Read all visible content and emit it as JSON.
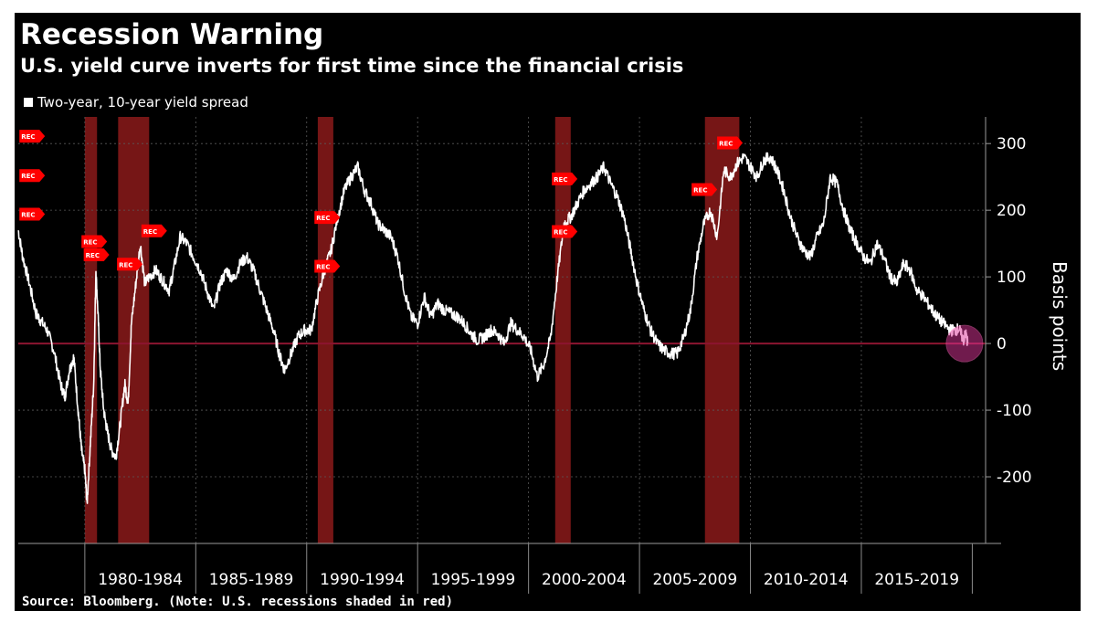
{
  "title": "Recession Warning",
  "subtitle": "U.S. yield curve inverts for first time since the financial crisis",
  "legend_label": "Two-year, 10-year yield spread",
  "source": "Source: Bloomberg. (Note: U.S. recessions shaded in red)",
  "colors": {
    "background": "#000000",
    "line": "#ffffff",
    "recession_shade": "#8b1a1a",
    "zero_line": "#8c1530",
    "highlight": "#e0379a",
    "marker": "#ff0000"
  },
  "chart_data": {
    "type": "line",
    "title": "Recession Warning",
    "subtitle": "U.S. yield curve inverts for first time since the financial crisis",
    "ylabel": "Basis points",
    "xlabel": "",
    "xlim": [
      1977.0,
      2020.6
    ],
    "ylim": [
      -300,
      340
    ],
    "yticks": [
      -200,
      -100,
      0,
      100,
      200,
      300
    ],
    "ytick_labels": [
      "-200",
      "-100",
      "0",
      "100",
      "200",
      "300"
    ],
    "x_period_labels": [
      {
        "label": "1980-1984",
        "start": 1980,
        "end": 1985
      },
      {
        "label": "1985-1989",
        "start": 1985,
        "end": 1990
      },
      {
        "label": "1990-1994",
        "start": 1990,
        "end": 1995
      },
      {
        "label": "1995-1999",
        "start": 1995,
        "end": 2000
      },
      {
        "label": "2000-2004",
        "start": 2000,
        "end": 2005
      },
      {
        "label": "2005-2009",
        "start": 2005,
        "end": 2010
      },
      {
        "label": "2010-2014",
        "start": 2010,
        "end": 2015
      },
      {
        "label": "2015-2019",
        "start": 2015,
        "end": 2020
      }
    ],
    "recessions": [
      {
        "start": 1980.0,
        "end": 1980.55
      },
      {
        "start": 1981.5,
        "end": 1982.9
      },
      {
        "start": 1990.5,
        "end": 1991.2
      },
      {
        "start": 2001.2,
        "end": 2001.9
      },
      {
        "start": 2007.95,
        "end": 2009.5
      }
    ],
    "rec_markers": [
      {
        "label": "REC",
        "x": 1977.05,
        "y": 311
      },
      {
        "label": "REC",
        "x": 1977.05,
        "y": 252
      },
      {
        "label": "REC",
        "x": 1977.05,
        "y": 194
      },
      {
        "label": "REC",
        "x": 1979.85,
        "y": 153
      },
      {
        "label": "REC",
        "x": 1979.95,
        "y": 133
      },
      {
        "label": "REC",
        "x": 1981.45,
        "y": 119
      },
      {
        "label": "REC",
        "x": 1982.55,
        "y": 169
      },
      {
        "label": "REC",
        "x": 1990.35,
        "y": 189
      },
      {
        "label": "REC",
        "x": 1990.35,
        "y": 116
      },
      {
        "label": "REC",
        "x": 2001.05,
        "y": 247
      },
      {
        "label": "REC",
        "x": 2001.05,
        "y": 168
      },
      {
        "label": "REC",
        "x": 2007.35,
        "y": 231
      },
      {
        "label": "REC",
        "x": 2008.5,
        "y": 301
      }
    ],
    "series": [
      {
        "name": "Two-year, 10-year yield spread",
        "x": [
          1977.0,
          1977.2,
          1977.5,
          1977.8,
          1978.0,
          1978.3,
          1978.6,
          1978.9,
          1979.1,
          1979.3,
          1979.5,
          1979.7,
          1979.85,
          1980.0,
          1980.1,
          1980.25,
          1980.4,
          1980.5,
          1980.6,
          1980.7,
          1980.85,
          1981.0,
          1981.2,
          1981.4,
          1981.6,
          1981.8,
          1981.95,
          1982.1,
          1982.3,
          1982.5,
          1982.7,
          1982.9,
          1983.2,
          1983.5,
          1983.8,
          1984.0,
          1984.3,
          1984.6,
          1984.9,
          1985.2,
          1985.5,
          1985.8,
          1986.1,
          1986.4,
          1986.7,
          1987.0,
          1987.3,
          1987.6,
          1987.9,
          1988.2,
          1988.5,
          1988.8,
          1989.0,
          1989.3,
          1989.6,
          1989.9,
          1990.2,
          1990.5,
          1990.8,
          1991.1,
          1991.4,
          1991.7,
          1992.0,
          1992.3,
          1992.6,
          1992.9,
          1993.2,
          1993.5,
          1993.8,
          1994.1,
          1994.4,
          1994.7,
          1995.0,
          1995.3,
          1995.6,
          1995.9,
          1996.2,
          1996.5,
          1996.8,
          1997.1,
          1997.4,
          1997.7,
          1998.0,
          1998.3,
          1998.6,
          1998.9,
          1999.2,
          1999.5,
          1999.8,
          2000.1,
          2000.4,
          2000.7,
          2001.0,
          2001.3,
          2001.6,
          2001.9,
          2002.2,
          2002.5,
          2002.8,
          2003.1,
          2003.4,
          2003.7,
          2004.0,
          2004.3,
          2004.6,
          2004.9,
          2005.2,
          2005.5,
          2005.8,
          2006.1,
          2006.4,
          2006.7,
          2007.0,
          2007.3,
          2007.6,
          2007.9,
          2008.2,
          2008.5,
          2008.8,
          2009.1,
          2009.4,
          2009.7,
          2010.0,
          2010.3,
          2010.6,
          2010.9,
          2011.2,
          2011.5,
          2011.8,
          2012.1,
          2012.4,
          2012.7,
          2013.0,
          2013.3,
          2013.6,
          2013.9,
          2014.2,
          2014.5,
          2014.8,
          2015.1,
          2015.4,
          2015.7,
          2016.0,
          2016.3,
          2016.6,
          2016.9,
          2017.2,
          2017.5,
          2017.8,
          2018.1,
          2018.4,
          2018.7,
          2019.0,
          2019.2,
          2019.4,
          2019.6,
          2019.7,
          2019.8
        ],
        "values": [
          170,
          130,
          90,
          45,
          35,
          20,
          -10,
          -60,
          -80,
          -40,
          -20,
          -100,
          -160,
          -190,
          -240,
          -150,
          -60,
          110,
          40,
          -40,
          -100,
          -130,
          -160,
          -170,
          -120,
          -60,
          -90,
          30,
          90,
          150,
          90,
          100,
          110,
          95,
          80,
          110,
          160,
          150,
          130,
          110,
          80,
          50,
          90,
          110,
          95,
          120,
          130,
          110,
          80,
          50,
          20,
          -20,
          -40,
          -15,
          10,
          20,
          20,
          70,
          110,
          140,
          190,
          230,
          250,
          265,
          230,
          210,
          180,
          170,
          160,
          130,
          80,
          40,
          30,
          70,
          40,
          60,
          50,
          45,
          40,
          30,
          15,
          5,
          10,
          20,
          15,
          0,
          30,
          20,
          10,
          -10,
          -50,
          -30,
          10,
          100,
          180,
          190,
          210,
          230,
          240,
          250,
          265,
          240,
          220,
          190,
          140,
          90,
          50,
          20,
          0,
          -10,
          -15,
          -15,
          10,
          50,
          130,
          180,
          200,
          160,
          260,
          250,
          270,
          280,
          265,
          250,
          275,
          280,
          260,
          230,
          190,
          160,
          140,
          130,
          160,
          180,
          250,
          240,
          200,
          170,
          150,
          130,
          120,
          150,
          130,
          100,
          90,
          120,
          110,
          80,
          70,
          55,
          40,
          30,
          20,
          20,
          22,
          5,
          15,
          0
        ]
      }
    ],
    "highlight": {
      "x": 2019.65,
      "y": 0,
      "note": "current inversion circled"
    }
  }
}
